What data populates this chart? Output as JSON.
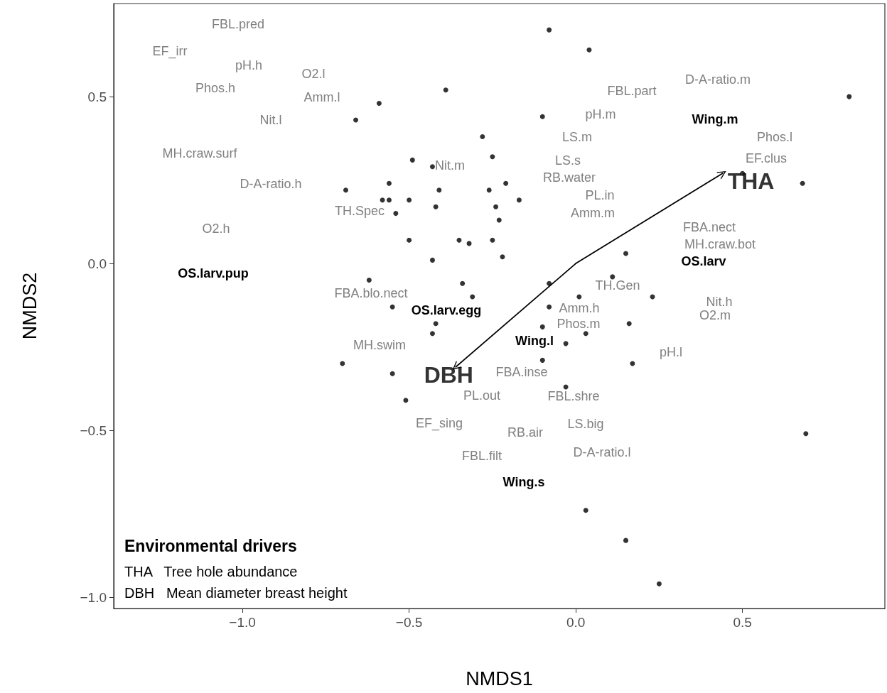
{
  "chart_data": {
    "type": "scatter",
    "xlabel": "NMDS1",
    "ylabel": "NMDS2",
    "xlim": [
      -1.386,
      0.927
    ],
    "ylim": [
      -1.034,
      0.779
    ],
    "xticks": [
      {
        "value": -1,
        "label": "−1.0"
      },
      {
        "value": -0.5,
        "label": "−0.5"
      },
      {
        "value": 0,
        "label": "0.0"
      },
      {
        "value": 0.5,
        "label": "0.5"
      }
    ],
    "yticks": [
      {
        "value": -1,
        "label": "−1.0"
      },
      {
        "value": -0.5,
        "label": "−0.5"
      },
      {
        "value": 0,
        "label": "0.0"
      },
      {
        "value": 0.5,
        "label": "0.5"
      }
    ],
    "grid": false,
    "legend_title": "Environmental drivers",
    "annotations": [
      "THA   Tree hole abundance",
      "DBH   Mean diameter breast height",
      "FBL.pred",
      "EF_irr",
      "pH.h",
      "O2.l",
      "Phos.h",
      "Amm.l",
      "Nit.l",
      "MH.craw.surf",
      "D-A-ratio.h",
      "O2.h",
      "Nit.m",
      "TH.Spec",
      "FBL.part",
      "D-A-ratio.m",
      "pH.m",
      "LS.m",
      "Phos.l",
      "LS.s",
      "EF.clus",
      "RB.water",
      "PL.in",
      "Amm.m",
      "FBA.nect",
      "MH.craw.bot",
      "FBA.blo.nect",
      "TH.Gen",
      "Nit.h",
      "Amm.h",
      "O2.m",
      "Phos.m",
      "MH.swim",
      "pH.l",
      "FBA.inse",
      "PL.out",
      "FBL.shre",
      "EF_sing",
      "LS.big",
      "RB.air",
      "D-A-ratio.l",
      "FBL.filt",
      "Wing.m",
      "OS.larv",
      "OS.larv.pup",
      "OS.larv.egg",
      "Wing.l",
      "Wing.s"
    ],
    "series": [
      {
        "color": "#000000",
        "marker": "circle",
        "x": [
          -0.08,
          0.04,
          -0.39,
          -0.59,
          -0.1,
          0.82,
          -0.66,
          -0.28,
          -0.25,
          -0.49,
          -0.43,
          -0.21,
          -0.56,
          -0.26,
          -0.69,
          -0.41,
          -0.58,
          -0.5,
          -0.56,
          -0.24,
          -0.42,
          -0.17,
          -0.54,
          -0.23,
          -0.5,
          -0.35,
          -0.32,
          -0.25,
          -0.43,
          -0.22,
          0.5,
          0.68,
          -0.62,
          -0.34,
          -0.31,
          -0.55,
          0.15,
          0.11,
          -0.08,
          0.01,
          0.23,
          -0.08,
          -0.42,
          -0.1,
          -0.43,
          0.16,
          0.03,
          -0.03,
          -0.1,
          0.17,
          -0.7,
          -0.55,
          -0.03,
          -0.51,
          0.69,
          0.03,
          0.15,
          0.25
        ],
        "values": [
          0.7,
          0.64,
          0.52,
          0.48,
          0.44,
          0.5,
          0.43,
          0.38,
          0.32,
          0.31,
          0.29,
          0.24,
          0.24,
          0.22,
          0.22,
          0.22,
          0.19,
          0.19,
          0.19,
          0.17,
          0.17,
          0.19,
          0.15,
          0.13,
          0.07,
          0.07,
          0.06,
          0.07,
          0.01,
          0.02,
          0.27,
          0.24,
          -0.05,
          -0.06,
          -0.1,
          -0.13,
          0.03,
          -0.04,
          -0.06,
          -0.1,
          -0.1,
          -0.13,
          -0.18,
          -0.19,
          -0.21,
          -0.18,
          -0.21,
          -0.24,
          -0.29,
          -0.3,
          -0.3,
          -0.33,
          -0.37,
          -0.41,
          -0.51,
          -0.74,
          -0.83,
          -0.96
        ]
      },
      {
        "type": "line",
        "color": "#000000",
        "marker": "none",
        "x": [
          -0.36,
          0,
          0.44
        ],
        "values": [
          -0.31,
          0,
          0.27
        ],
        "value_labels": [
          "DBH",
          null,
          "THA"
        ]
      }
    ]
  }
}
